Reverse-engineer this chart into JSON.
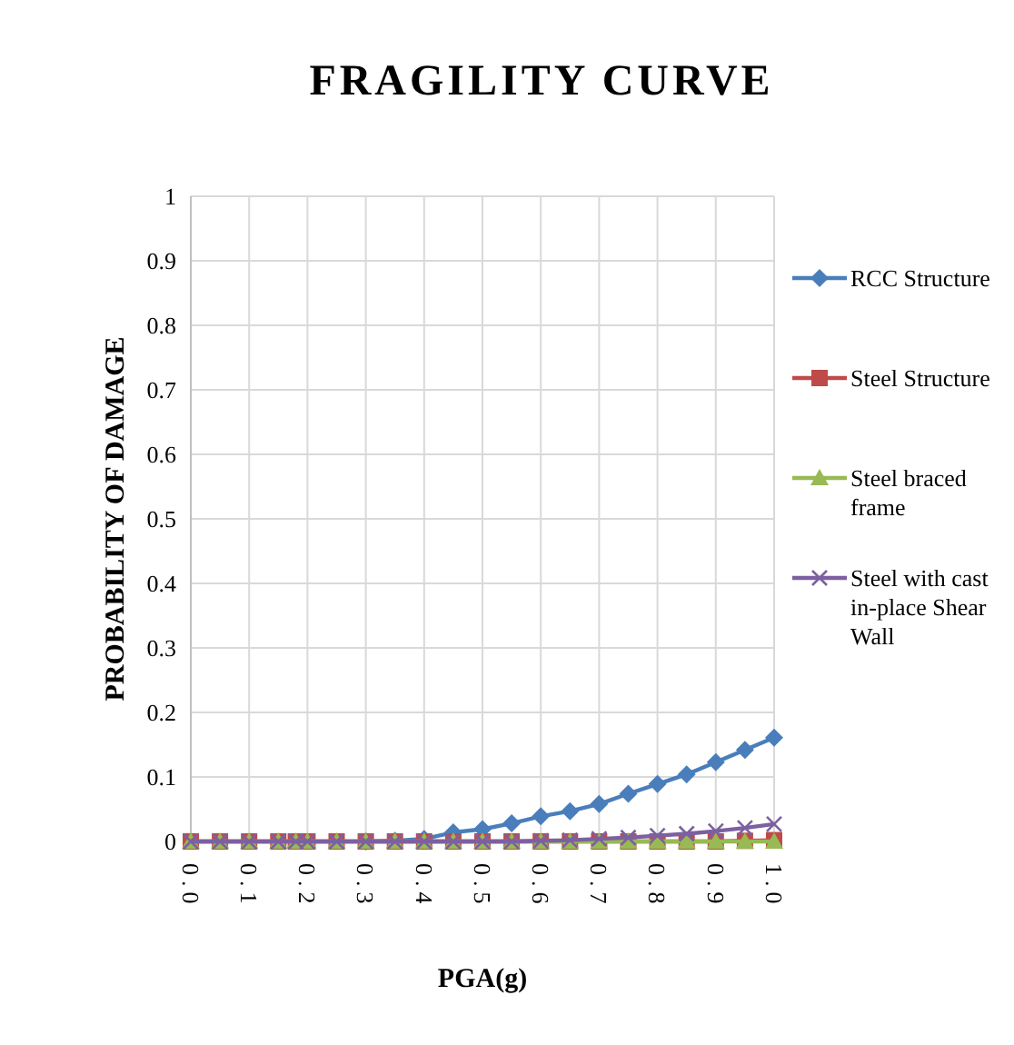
{
  "chart_data": {
    "type": "line",
    "title": "FRAGILITY CURVE",
    "xlabel": "PGA(g)",
    "ylabel": "PROBABILITY OF DAMAGE",
    "x": [
      0,
      0.05,
      0.1,
      0.15,
      0.18,
      0.2,
      0.25,
      0.3,
      0.35,
      0.4,
      0.45,
      0.5,
      0.55,
      0.6,
      0.65,
      0.7,
      0.75,
      0.8,
      0.85,
      0.9,
      0.95,
      1.0
    ],
    "series": [
      {
        "name": "RCC Structure",
        "color": "#4a7ebb",
        "marker": "diamond",
        "values": [
          null,
          null,
          null,
          null,
          null,
          null,
          null,
          0,
          0.001,
          0.004,
          0.014,
          0.019,
          0.028,
          0.039,
          0.047,
          0.058,
          0.074,
          0.089,
          0.104,
          0.123,
          0.142,
          0.161
        ]
      },
      {
        "name": "Steel Structure",
        "color": "#be4b48",
        "marker": "square",
        "values": [
          0,
          0,
          0,
          0,
          0,
          0,
          0,
          0,
          0,
          0,
          0,
          0,
          0,
          0,
          0,
          0,
          0,
          0,
          0,
          0,
          0.001,
          0.002
        ]
      },
      {
        "name": "Steel braced frame",
        "color": "#98b954",
        "marker": "triangle",
        "values": [
          0,
          0,
          0,
          0,
          0,
          0,
          0,
          0,
          0,
          0,
          0,
          0,
          0,
          0,
          0,
          0,
          0,
          0,
          0,
          0,
          0,
          0
        ]
      },
      {
        "name": "Steel with cast in-place Shear Wall",
        "color": "#7d60a0",
        "marker": "cross",
        "values": [
          0,
          0,
          0,
          0,
          0,
          0,
          0,
          0,
          0,
          0,
          0,
          0,
          0,
          0.001,
          0.002,
          0.004,
          0.006,
          0.009,
          0.012,
          0.016,
          0.021,
          0.027
        ]
      }
    ],
    "xlim": [
      0,
      1
    ],
    "xticks": [
      {
        "value": 0,
        "label": "0.0"
      },
      {
        "value": 0.1,
        "label": "0.1"
      },
      {
        "value": 0.2,
        "label": "0.2"
      },
      {
        "value": 0.3,
        "label": "0.3"
      },
      {
        "value": 0.4,
        "label": "0.4"
      },
      {
        "value": 0.5,
        "label": "0.5"
      },
      {
        "value": 0.6,
        "label": "0.6"
      },
      {
        "value": 0.7,
        "label": "0.7"
      },
      {
        "value": 0.8,
        "label": "0.8"
      },
      {
        "value": 0.9,
        "label": "0.9"
      },
      {
        "value": 1,
        "label": "1.0"
      }
    ],
    "ylim": [
      0,
      1
    ],
    "yticks": [
      0,
      0.1,
      0.2,
      0.3,
      0.4,
      0.5,
      0.6,
      0.7,
      0.8,
      0.9,
      1
    ],
    "grid": true,
    "legend": "right",
    "line_style": "solid"
  }
}
